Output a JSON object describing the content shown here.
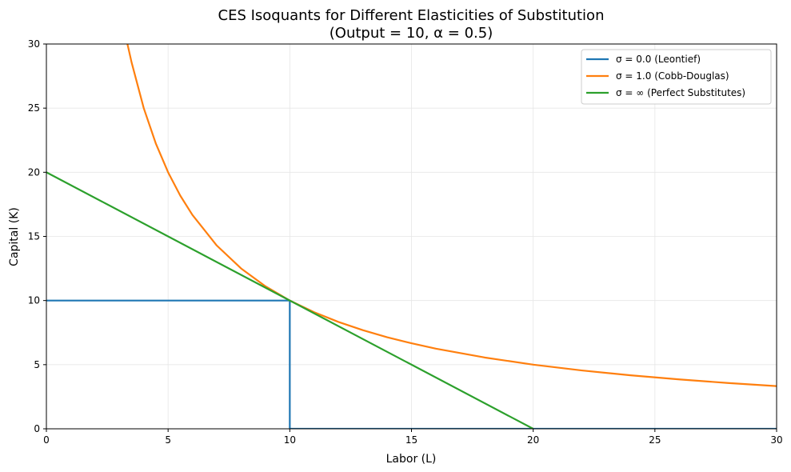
{
  "chart_data": {
    "type": "line",
    "title_line1": "CES Isoquants for Different Elasticities of Substitution",
    "title_line2": "(Output = 10, α = 0.5)",
    "xlabel": "Labor (L)",
    "ylabel": "Capital (K)",
    "xlim": [
      0,
      30
    ],
    "ylim": [
      0,
      30
    ],
    "xticks": [
      0,
      5,
      10,
      15,
      20,
      25,
      30
    ],
    "yticks": [
      0,
      5,
      10,
      15,
      20,
      25,
      30
    ],
    "grid": true,
    "legend_position": "top-right",
    "series": [
      {
        "name": "σ = 0.0 (Leontief)",
        "color": "#1f77b4",
        "x": [
          0,
          10,
          10,
          30
        ],
        "y": [
          10,
          10,
          0,
          0
        ]
      },
      {
        "name": "σ = 1.0 (Cobb-Douglas)",
        "color": "#ff7f0e",
        "x": [
          3.33,
          3.5,
          4,
          4.5,
          5,
          5.5,
          6,
          7,
          8,
          9,
          10,
          11,
          12,
          13,
          14,
          15,
          16,
          18,
          20,
          22,
          24,
          26,
          28,
          30
        ],
        "y": [
          30,
          28.57,
          25,
          22.22,
          20,
          18.18,
          16.67,
          14.29,
          12.5,
          11.11,
          10,
          9.09,
          8.33,
          7.69,
          7.14,
          6.67,
          6.25,
          5.56,
          5,
          4.55,
          4.17,
          3.85,
          3.57,
          3.33
        ]
      },
      {
        "name": "σ = ∞ (Perfect Substitutes)",
        "color": "#2ca02c",
        "x": [
          0,
          20
        ],
        "y": [
          20,
          0
        ]
      }
    ]
  }
}
